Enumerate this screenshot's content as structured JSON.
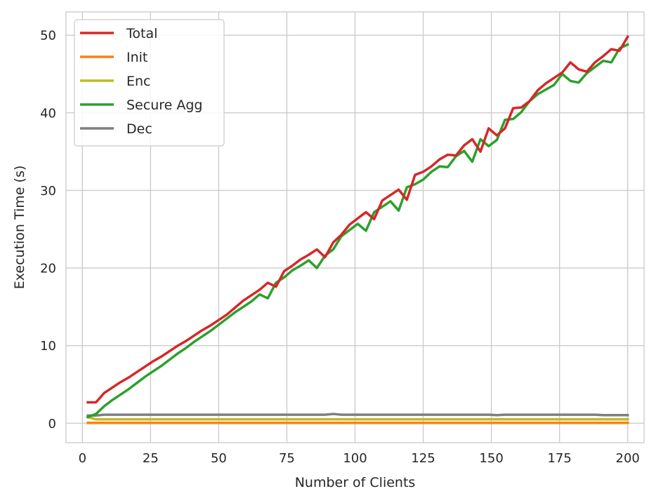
{
  "chart_data": {
    "type": "line",
    "xlabel": "Number of Clients",
    "ylabel": "Execution Time (s)",
    "xlim": [
      -6,
      206
    ],
    "ylim": [
      -2.5,
      53
    ],
    "xticks": [
      0,
      25,
      50,
      75,
      100,
      125,
      150,
      175,
      200
    ],
    "yticks": [
      0,
      10,
      20,
      30,
      40,
      50
    ],
    "grid": true,
    "legend_position": "top-left",
    "x": [
      2,
      5,
      8,
      11,
      14,
      17,
      20,
      23,
      26,
      29,
      32,
      35,
      38,
      41,
      44,
      47,
      50,
      53,
      56,
      59,
      62,
      65,
      68,
      71,
      74,
      77,
      80,
      83,
      86,
      89,
      92,
      95,
      98,
      101,
      104,
      107,
      110,
      113,
      116,
      119,
      122,
      125,
      128,
      131,
      134,
      137,
      140,
      143,
      146,
      149,
      152,
      155,
      158,
      161,
      164,
      167,
      170,
      173,
      176,
      179,
      182,
      185,
      188,
      191,
      194,
      197,
      200
    ],
    "series": [
      {
        "name": "Total",
        "color": "#d62728",
        "values": [
          2.7,
          2.7,
          3.9,
          4.6,
          5.3,
          5.9,
          6.6,
          7.3,
          8.0,
          8.6,
          9.3,
          10.0,
          10.6,
          11.3,
          12.0,
          12.6,
          13.3,
          14.0,
          14.9,
          15.8,
          16.5,
          17.2,
          18.1,
          17.6,
          19.6,
          20.3,
          21.1,
          21.7,
          22.4,
          21.4,
          23.3,
          24.3,
          25.6,
          26.4,
          27.2,
          26.3,
          28.7,
          29.4,
          30.1,
          28.8,
          32.0,
          32.4,
          33.1,
          34.0,
          34.6,
          34.5,
          35.8,
          36.6,
          35.0,
          38.0,
          37.1,
          38.0,
          40.6,
          40.7,
          41.5,
          42.9,
          43.8,
          44.5,
          45.2,
          46.5,
          45.6,
          45.3,
          46.5,
          47.3,
          48.2,
          48.0,
          49.8
        ]
      },
      {
        "name": "Init",
        "color": "#ff7f0e",
        "values": [
          0.05,
          0.05,
          0.05,
          0.05,
          0.05,
          0.05,
          0.05,
          0.05,
          0.05,
          0.05,
          0.05,
          0.05,
          0.05,
          0.05,
          0.05,
          0.05,
          0.05,
          0.05,
          0.05,
          0.05,
          0.05,
          0.05,
          0.05,
          0.05,
          0.05,
          0.05,
          0.05,
          0.05,
          0.05,
          0.05,
          0.05,
          0.05,
          0.05,
          0.05,
          0.05,
          0.05,
          0.05,
          0.05,
          0.05,
          0.05,
          0.05,
          0.05,
          0.05,
          0.05,
          0.05,
          0.05,
          0.05,
          0.05,
          0.05,
          0.05,
          0.05,
          0.05,
          0.05,
          0.05,
          0.05,
          0.05,
          0.05,
          0.05,
          0.05,
          0.05,
          0.05,
          0.05,
          0.05,
          0.05,
          0.05,
          0.05,
          0.05
        ]
      },
      {
        "name": "Enc",
        "color": "#bcbd22",
        "values": [
          0.8,
          0.5,
          0.5,
          0.5,
          0.5,
          0.5,
          0.5,
          0.5,
          0.5,
          0.5,
          0.5,
          0.5,
          0.5,
          0.5,
          0.5,
          0.5,
          0.5,
          0.5,
          0.5,
          0.5,
          0.5,
          0.5,
          0.5,
          0.5,
          0.5,
          0.5,
          0.5,
          0.5,
          0.5,
          0.5,
          0.5,
          0.5,
          0.5,
          0.5,
          0.5,
          0.5,
          0.5,
          0.5,
          0.5,
          0.5,
          0.5,
          0.5,
          0.5,
          0.5,
          0.5,
          0.5,
          0.5,
          0.5,
          0.5,
          0.5,
          0.5,
          0.5,
          0.5,
          0.5,
          0.5,
          0.5,
          0.5,
          0.5,
          0.5,
          0.5,
          0.5,
          0.5,
          0.5,
          0.5,
          0.5,
          0.5,
          0.5
        ]
      },
      {
        "name": "Secure Agg",
        "color": "#2ca02c",
        "values": [
          0.8,
          1.2,
          2.2,
          3.0,
          3.7,
          4.4,
          5.2,
          6.0,
          6.7,
          7.4,
          8.2,
          9.0,
          9.7,
          10.5,
          11.2,
          11.9,
          12.7,
          13.5,
          14.3,
          15.0,
          15.7,
          16.6,
          16.1,
          18.1,
          18.8,
          19.7,
          20.3,
          21.0,
          20.0,
          21.6,
          22.4,
          24.1,
          24.9,
          25.7,
          24.8,
          27.2,
          27.9,
          28.6,
          27.4,
          30.4,
          30.8,
          31.4,
          32.4,
          33.1,
          33.0,
          34.4,
          35.1,
          33.7,
          36.6,
          35.7,
          36.5,
          39.1,
          39.2,
          40.1,
          41.5,
          42.4,
          43.0,
          43.6,
          45.0,
          44.1,
          43.9,
          45.1,
          45.9,
          46.7,
          46.5,
          48.3,
          48.8
        ]
      },
      {
        "name": "Dec",
        "color": "#7f7f7f",
        "values": [
          1.0,
          1.0,
          1.1,
          1.1,
          1.1,
          1.1,
          1.1,
          1.1,
          1.1,
          1.1,
          1.1,
          1.1,
          1.1,
          1.1,
          1.1,
          1.1,
          1.1,
          1.1,
          1.1,
          1.1,
          1.1,
          1.1,
          1.1,
          1.1,
          1.1,
          1.1,
          1.1,
          1.1,
          1.1,
          1.1,
          1.2,
          1.1,
          1.1,
          1.1,
          1.1,
          1.1,
          1.1,
          1.1,
          1.1,
          1.1,
          1.1,
          1.1,
          1.1,
          1.1,
          1.1,
          1.1,
          1.1,
          1.1,
          1.1,
          1.1,
          1.05,
          1.1,
          1.1,
          1.1,
          1.1,
          1.1,
          1.1,
          1.1,
          1.1,
          1.1,
          1.1,
          1.1,
          1.1,
          1.05,
          1.05,
          1.05,
          1.05
        ]
      }
    ]
  }
}
